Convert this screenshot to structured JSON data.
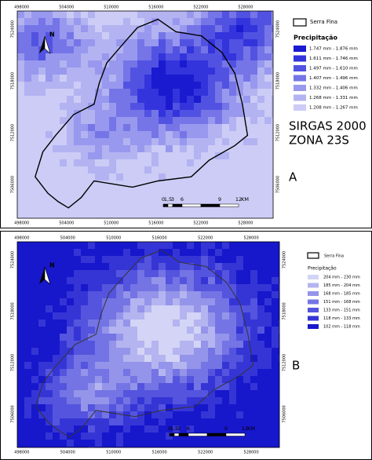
{
  "panel_a": {
    "x_labels": [
      "498000",
      "504000",
      "510000",
      "516000",
      "522000",
      "528000"
    ],
    "y_labels": [
      "7524000",
      "7518000",
      "7512000",
      "7506000"
    ],
    "legend": {
      "boundary": "Serra Fina",
      "title": "Precipitação",
      "items": [
        {
          "label": "1.747 mm - 1.876 mm",
          "color": "#1a1ad0"
        },
        {
          "label": "1.611 mm - 1.746 mm",
          "color": "#3434dc"
        },
        {
          "label": "1.497 mm - 1.610 mm",
          "color": "#5252e2"
        },
        {
          "label": "1.407 mm - 1.496 mm",
          "color": "#7575e8"
        },
        {
          "label": "1.332 mm - 1.406 mm",
          "color": "#9898ee"
        },
        {
          "label": "1.268 mm - 1.331 mm",
          "color": "#b3b3f2"
        },
        {
          "label": "1.208 mm - 1.267 mm",
          "color": "#ccccf6"
        }
      ]
    },
    "crs": [
      "SIRGAS 2000",
      "ZONA 23S"
    ],
    "tag": "A",
    "scale": [
      "0",
      "1,5",
      "3",
      "6",
      "9",
      "12",
      "KM"
    ],
    "north": "N"
  },
  "panel_b": {
    "x_labels": [
      "498000",
      "504000",
      "510000",
      "516000",
      "522000",
      "528000"
    ],
    "y_labels": [
      "7524000",
      "7518000",
      "7512000",
      "7506000"
    ],
    "legend": {
      "boundary": "Serra Fina",
      "title": "Precipitação",
      "items": [
        {
          "label": "204 mm - 230 mm",
          "color": "#d4d4f6"
        },
        {
          "label": "185 mm - 204 mm",
          "color": "#b4b4f0"
        },
        {
          "label": "168 mm - 185 mm",
          "color": "#9494ea"
        },
        {
          "label": "151 mm - 168 mm",
          "color": "#7474e4"
        },
        {
          "label": "133 mm - 151 mm",
          "color": "#5454de"
        },
        {
          "label": "118 mm - 133 mm",
          "color": "#3535d6"
        },
        {
          "label": "102 mm - 118 mm",
          "color": "#1717cc"
        }
      ]
    },
    "tag": "B",
    "scale": [
      "0",
      "1,5",
      "3",
      "6",
      "9",
      "12",
      "KM"
    ],
    "north": "N"
  }
}
